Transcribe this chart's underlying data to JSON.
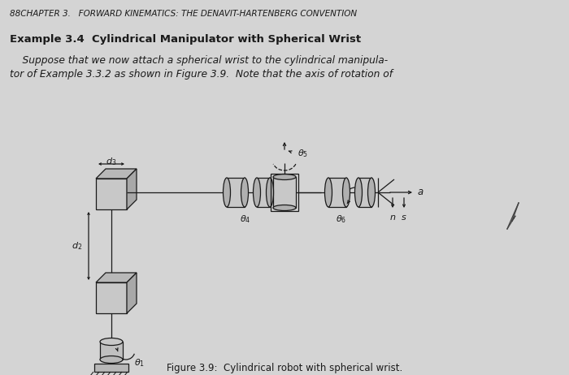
{
  "bg_color": "#d4d4d4",
  "title_text": "88CHAPTER 3.   FORWARD KINEMATICS: THE DENAVIT-HARTENBERG CONVENTION",
  "example_title": "Example 3.4  Cylindrical Manipulator with Spherical Wrist",
  "body_line1": "    Suppose that we now attach a spherical wrist to the cylindrical manipula-",
  "body_line2": "tor of Example 3.3.2 as shown in Figure 3.9.  Note that the axis of rotation of",
  "caption": "Figure 3.9:  Cylindrical robot with spherical wrist.",
  "lc": "#1a1a1a",
  "lw": 0.9
}
